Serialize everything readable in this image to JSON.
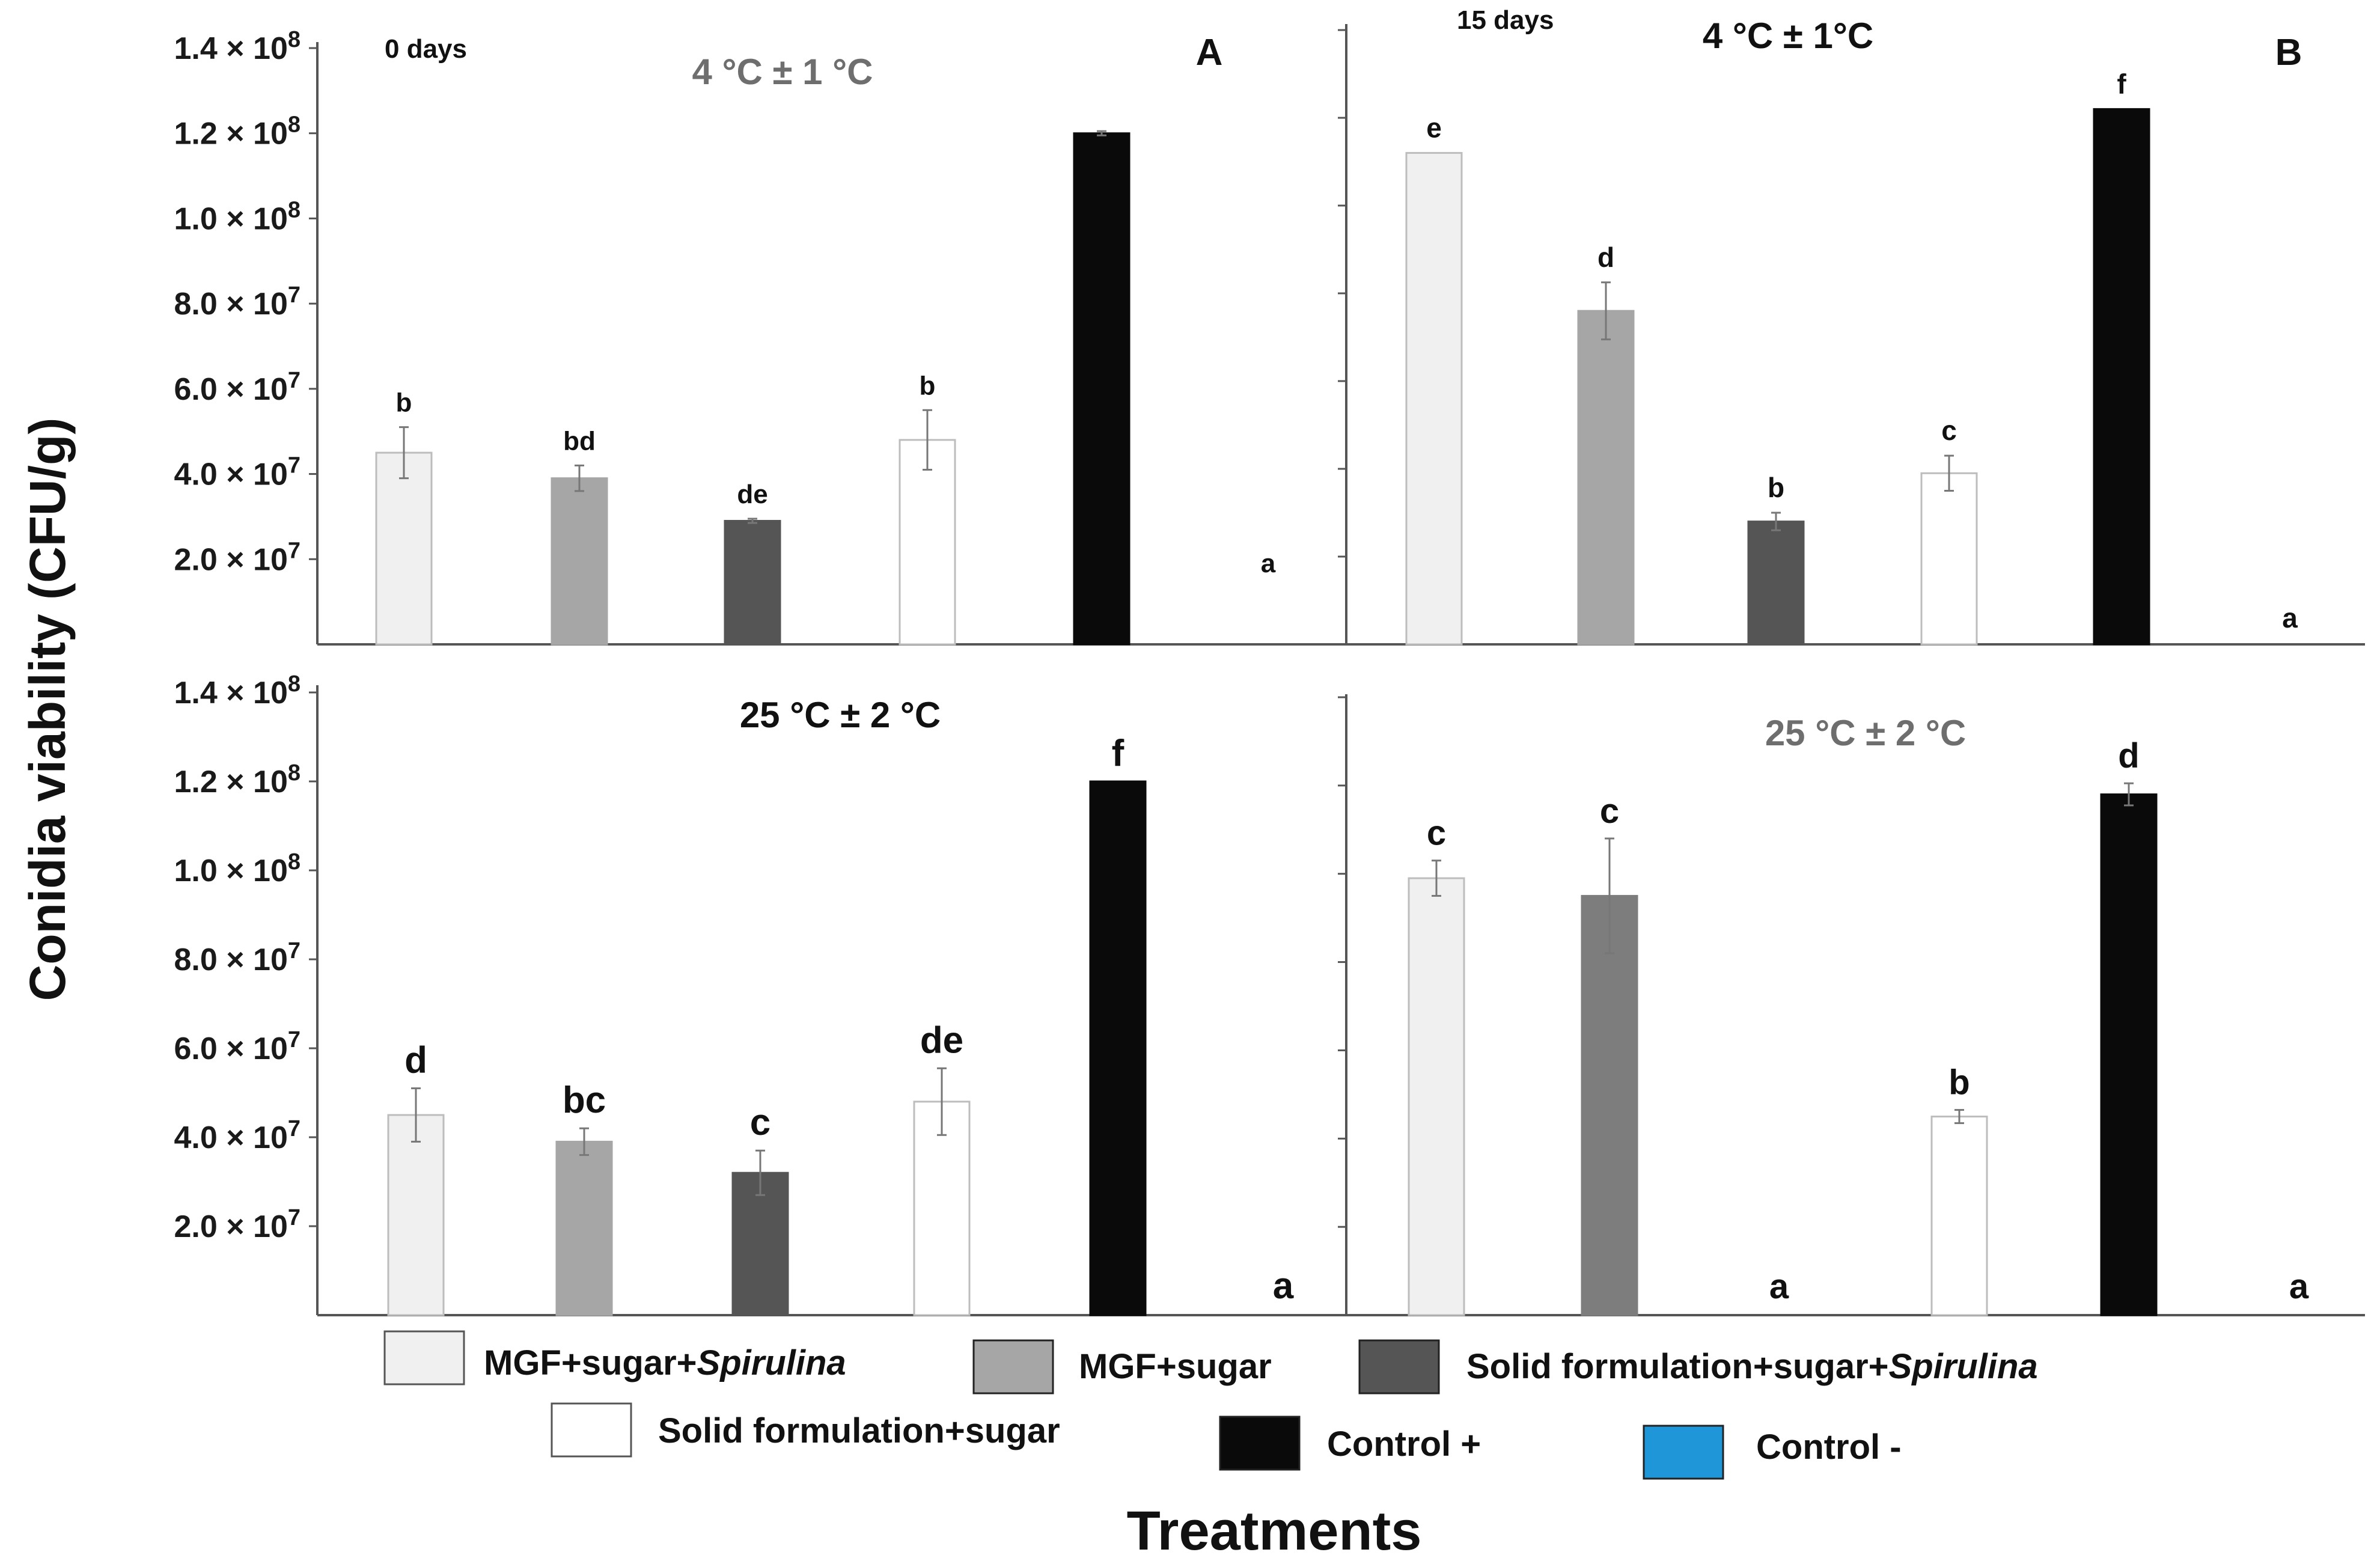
{
  "chart_data": {
    "type": "bar",
    "ylabel": "Conidia viability (CFU/g)",
    "xlabel": "Treatments",
    "ylim": [
      0,
      140000000
    ],
    "ytick_values": [
      20000000,
      40000000,
      60000000,
      80000000,
      100000000,
      120000000,
      140000000
    ],
    "ytick_mantissas": [
      "2.0",
      "4.0",
      "6.0",
      "8.0",
      "1.0",
      "1.2",
      "1.4"
    ],
    "ytick_exponents": [
      "7",
      "7",
      "7",
      "7",
      "8",
      "8",
      "8"
    ],
    "ytick_times": "×",
    "ytick_base": "10",
    "legend": [
      {
        "label": "MGF+sugar+",
        "label_italic": "Spirulina",
        "color": "#f0f0f0"
      },
      {
        "label": "MGF+sugar",
        "label_italic": "",
        "color": "#a6a6a6"
      },
      {
        "label": "Solid formulation+sugar+",
        "label_italic": "Spirulina",
        "color": "#555555"
      },
      {
        "label": "Solid formulation+sugar",
        "label_italic": "",
        "color": "#ffffff"
      },
      {
        "label": "Control +",
        "label_italic": "",
        "color": "#0a0a0a"
      },
      {
        "label": "Control -",
        "label_italic": "",
        "color": "#1e96d8"
      }
    ],
    "panels": [
      {
        "id": "A",
        "title": "4 °C ± 1 °C",
        "title_color": "#6e6e6e",
        "days": "0 days",
        "values": [
          45000000,
          39000000,
          29000000,
          48000000,
          120000000,
          0
        ],
        "errors": [
          6000000,
          3000000,
          500000,
          7000000,
          500000,
          0
        ],
        "letters": [
          "b",
          "bd",
          "de",
          "b",
          "",
          "a"
        ],
        "colors": [
          "#f0f0f0",
          "#a6a6a6",
          "#555555",
          "#ffffff",
          "#0a0a0a",
          "#1e96d8"
        ]
      },
      {
        "id": "B",
        "title": "4 °C ± 1°C",
        "title_color": "#111111",
        "days": "15 days",
        "values": [
          112000000,
          76000000,
          28000000,
          39000000,
          122000000,
          0
        ],
        "errors": [
          0,
          6500000,
          2000000,
          4000000,
          0,
          0
        ],
        "letters": [
          "e",
          "d",
          "b",
          "c",
          "f",
          "a"
        ],
        "colors": [
          "#f0f0f0",
          "#a6a6a6",
          "#555555",
          "#ffffff",
          "#0a0a0a",
          "#1e96d8"
        ]
      },
      {
        "id": "C",
        "title": "25 °C ± 2 °C",
        "title_color": "#111111",
        "days": "",
        "values": [
          45000000,
          39000000,
          32000000,
          48000000,
          120000000,
          0
        ],
        "errors": [
          6000000,
          3000000,
          5000000,
          7500000,
          0,
          0
        ],
        "letters": [
          "d",
          "bc",
          "c",
          "de",
          "f",
          "a"
        ],
        "colors": [
          "#f0f0f0",
          "#a6a6a6",
          "#555555",
          "#ffffff",
          "#0a0a0a",
          "#1e96d8"
        ]
      },
      {
        "id": "D",
        "title": "25 °C ± 2 °C",
        "title_color": "#6e6e6e",
        "days": "",
        "values": [
          99000000,
          95000000,
          0,
          45000000,
          118000000,
          0
        ],
        "errors": [
          4000000,
          13000000,
          0,
          1500000,
          2500000,
          0
        ],
        "letters": [
          "c",
          "c",
          "a",
          "b",
          "d",
          "a"
        ],
        "colors": [
          "#f0f0f0",
          "#7d7d7d",
          "#555555",
          "#ffffff",
          "#0a0a0a",
          "#1e96d8"
        ]
      }
    ]
  }
}
